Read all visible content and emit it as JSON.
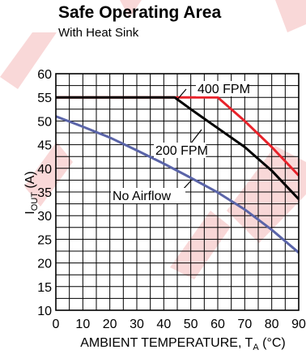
{
  "chart_data": {
    "type": "line",
    "title": "Safe Operating Area",
    "subtitle": "With Heat Sink",
    "xlabel": {
      "main": "AMBIENT TEMPERATURE, T",
      "sub": "A",
      "unit": " (°C)"
    },
    "ylabel": {
      "main": "I",
      "sub": "OUT",
      "unit": " (A)"
    },
    "xlim": [
      0,
      90
    ],
    "ylim": [
      10,
      60
    ],
    "xticks": [
      "0",
      "10",
      "20",
      "30",
      "40",
      "50",
      "60",
      "70",
      "80",
      "90"
    ],
    "yticks": [
      "10",
      "15",
      "20",
      "25",
      "30",
      "35",
      "40",
      "45",
      "50",
      "55",
      "60"
    ],
    "grid": true,
    "series": [
      {
        "name": "400 FPM",
        "color": "#e8222a",
        "x": [
          0,
          60,
          70,
          80,
          90
        ],
        "y": [
          55,
          55,
          50,
          44.5,
          38.5
        ]
      },
      {
        "name": "200 FPM",
        "color": "#000000",
        "x": [
          0,
          44,
          50,
          60,
          70,
          80,
          90
        ],
        "y": [
          55,
          55,
          52.5,
          48.5,
          44.5,
          39.5,
          33.5
        ]
      },
      {
        "name": "No Airflow",
        "color": "#5a64a8",
        "x": [
          0,
          10,
          20,
          30,
          40,
          50,
          60,
          70,
          80,
          90
        ],
        "y": [
          51,
          48.8,
          46.5,
          43.8,
          41,
          38,
          34.9,
          31.3,
          27,
          22.2
        ]
      }
    ],
    "annotations": [
      {
        "text": "400 FPM",
        "series": "400 FPM"
      },
      {
        "text": "200 FPM",
        "series": "200 FPM"
      },
      {
        "text": "No Airflow",
        "series": "No Airflow"
      }
    ]
  },
  "watermark": {
    "color": "#f4b8b8"
  }
}
